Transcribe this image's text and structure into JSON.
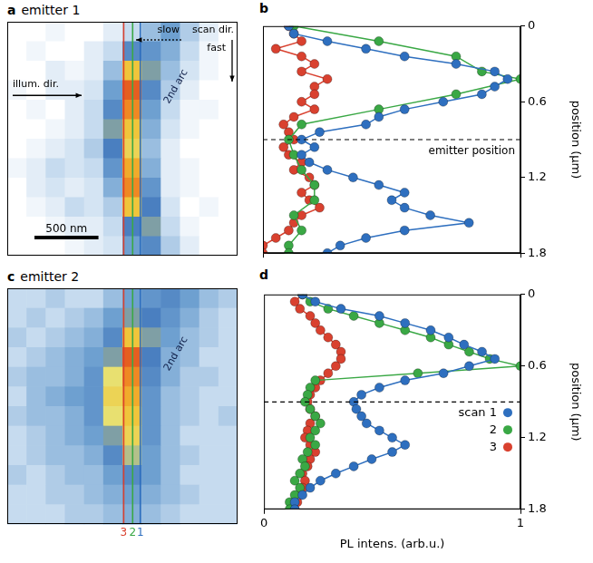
{
  "chart_data": [
    {
      "type": "heatmap",
      "panel": "a",
      "title": "emitter 1",
      "xlim": [
        0,
        1.8
      ],
      "ylim": [
        0,
        1.8
      ],
      "tick_labels": false,
      "zlim": [
        0,
        1
      ],
      "cells": [
        [
          0,
          0,
          0.05,
          0,
          0,
          0.1,
          0.2,
          0.3,
          0.4,
          0.25,
          0.1,
          0
        ],
        [
          0,
          0.05,
          0,
          0,
          0.1,
          0.2,
          0.5,
          0.45,
          0.35,
          0.2,
          0.05,
          0
        ],
        [
          0,
          0,
          0.1,
          0.05,
          0.1,
          0.3,
          0.8,
          0.6,
          0.3,
          0.15,
          0.05,
          0
        ],
        [
          0.05,
          0,
          0.1,
          0.1,
          0.15,
          0.4,
          0.95,
          0.5,
          0.25,
          0.1,
          0,
          0
        ],
        [
          0,
          0.05,
          0,
          0.1,
          0.2,
          0.5,
          0.9,
          0.4,
          0.2,
          0.05,
          0.05,
          0
        ],
        [
          0,
          0,
          0.05,
          0.1,
          0.2,
          0.6,
          0.8,
          0.35,
          0.15,
          0.05,
          0,
          0
        ],
        [
          0,
          0.05,
          0.1,
          0.15,
          0.25,
          0.55,
          0.75,
          0.3,
          0.1,
          0,
          0,
          0
        ],
        [
          0.05,
          0.1,
          0.2,
          0.15,
          0.2,
          0.45,
          0.85,
          0.35,
          0.1,
          0.05,
          0,
          0
        ],
        [
          0,
          0.1,
          0.15,
          0.1,
          0.15,
          0.35,
          0.9,
          0.45,
          0.1,
          0.05,
          0,
          0
        ],
        [
          0,
          0.05,
          0.1,
          0.2,
          0.15,
          0.25,
          0.8,
          0.55,
          0.15,
          0,
          0.05,
          0
        ],
        [
          0,
          0,
          0.05,
          0.1,
          0.1,
          0.2,
          0.55,
          0.6,
          0.2,
          0.05,
          0,
          0
        ],
        [
          0,
          0,
          0,
          0.05,
          0.1,
          0.15,
          0.4,
          0.5,
          0.25,
          0.1,
          0,
          0
        ]
      ],
      "scan_lines": [
        {
          "x": 1.04,
          "color": "#2e6fbf"
        },
        {
          "x": 0.98,
          "color": "#3aa845"
        },
        {
          "x": 0.91,
          "color": "#d9412f"
        }
      ],
      "illumination_label": "illum. dir.",
      "scan_label": "scan dir.",
      "slow_label": "slow",
      "fast_label": "fast",
      "arc_label": "2nd arc",
      "scale_bar": {
        "label": "500 nm",
        "length": 0.5
      }
    },
    {
      "type": "line",
      "panel": "b",
      "marker": "circle",
      "grid": false,
      "tick_labels": "y",
      "xlim": [
        0,
        1
      ],
      "xticks": [
        0,
        1
      ],
      "ylim": [
        0,
        1.8
      ],
      "yticks": [
        0,
        0.6,
        1.2,
        1.8
      ],
      "y_label": "position (µm)",
      "emitter_position": 0.9,
      "emitter_label": "emitter position",
      "series": [
        {
          "color": "#2e6fbf",
          "x": [
            0.1,
            0.12,
            0.25,
            0.4,
            0.55,
            0.75,
            0.9,
            0.95,
            0.9,
            0.85,
            0.7,
            0.55,
            0.45,
            0.4,
            0.22,
            0.15,
            0.2,
            0.15,
            0.18,
            0.25,
            0.35,
            0.45,
            0.55,
            0.5,
            0.55,
            0.65,
            0.8,
            0.55,
            0.4,
            0.3,
            0.25
          ],
          "y": [
            0,
            0.06,
            0.12,
            0.18,
            0.24,
            0.3,
            0.36,
            0.42,
            0.48,
            0.54,
            0.6,
            0.66,
            0.72,
            0.78,
            0.84,
            0.9,
            0.96,
            1.02,
            1.08,
            1.14,
            1.2,
            1.26,
            1.32,
            1.38,
            1.44,
            1.5,
            1.56,
            1.62,
            1.68,
            1.74,
            1.8
          ]
        },
        {
          "color": "#3aa845",
          "x": [
            0.12,
            0.45,
            0.75,
            0.85,
            1.0,
            0.75,
            0.45,
            0.15,
            0.1,
            0.12,
            0.15,
            0.2,
            0.2,
            0.12,
            0.15,
            0.1,
            0.1
          ],
          "y": [
            0,
            0.12,
            0.24,
            0.36,
            0.42,
            0.54,
            0.66,
            0.78,
            0.9,
            1.02,
            1.14,
            1.26,
            1.38,
            1.5,
            1.62,
            1.74,
            1.8
          ]
        },
        {
          "color": "#d9412f",
          "x": [
            0.1,
            0.12,
            0.15,
            0.05,
            0.15,
            0.2,
            0.15,
            0.25,
            0.2,
            0.2,
            0.15,
            0.2,
            0.12,
            0.08,
            0.1,
            0.12,
            0.08,
            0.1,
            0.15,
            0.12,
            0.18,
            0.2,
            0.15,
            0.18,
            0.22,
            0.15,
            0.12,
            0.1,
            0.05,
            0.0,
            0.0
          ],
          "y": [
            0,
            0.06,
            0.12,
            0.18,
            0.24,
            0.3,
            0.36,
            0.42,
            0.48,
            0.54,
            0.6,
            0.66,
            0.72,
            0.78,
            0.84,
            0.9,
            0.96,
            1.02,
            1.08,
            1.14,
            1.2,
            1.26,
            1.32,
            1.38,
            1.44,
            1.5,
            1.56,
            1.62,
            1.68,
            1.74,
            1.8
          ]
        }
      ]
    },
    {
      "type": "heatmap",
      "panel": "c",
      "title": "emitter 2",
      "xlim": [
        0,
        1.8
      ],
      "ylim": [
        0,
        1.8
      ],
      "tick_labels": false,
      "zlim": [
        0,
        1
      ],
      "cells": [
        [
          0.2,
          0.2,
          0.25,
          0.2,
          0.2,
          0.3,
          0.4,
          0.45,
          0.5,
          0.4,
          0.3,
          0.25
        ],
        [
          0.2,
          0.25,
          0.2,
          0.25,
          0.3,
          0.4,
          0.6,
          0.55,
          0.45,
          0.35,
          0.25,
          0.2
        ],
        [
          0.25,
          0.2,
          0.25,
          0.3,
          0.35,
          0.5,
          0.8,
          0.6,
          0.4,
          0.3,
          0.25,
          0.2
        ],
        [
          0.2,
          0.25,
          0.3,
          0.35,
          0.4,
          0.6,
          0.95,
          0.55,
          0.35,
          0.3,
          0.2,
          0.2
        ],
        [
          0.25,
          0.3,
          0.3,
          0.35,
          0.45,
          0.7,
          0.9,
          0.5,
          0.35,
          0.25,
          0.25,
          0.2
        ],
        [
          0.2,
          0.3,
          0.35,
          0.4,
          0.45,
          0.75,
          0.85,
          0.45,
          0.3,
          0.25,
          0.2,
          0.2
        ],
        [
          0.25,
          0.3,
          0.3,
          0.35,
          0.45,
          0.7,
          0.8,
          0.45,
          0.3,
          0.25,
          0.2,
          0.25
        ],
        [
          0.2,
          0.25,
          0.3,
          0.35,
          0.4,
          0.6,
          0.75,
          0.45,
          0.3,
          0.2,
          0.2,
          0.2
        ],
        [
          0.2,
          0.25,
          0.3,
          0.3,
          0.35,
          0.5,
          0.65,
          0.4,
          0.3,
          0.25,
          0.2,
          0.2
        ],
        [
          0.25,
          0.2,
          0.25,
          0.3,
          0.3,
          0.4,
          0.5,
          0.4,
          0.3,
          0.2,
          0.2,
          0.2
        ],
        [
          0.2,
          0.2,
          0.25,
          0.25,
          0.3,
          0.35,
          0.4,
          0.35,
          0.3,
          0.25,
          0.2,
          0.2
        ],
        [
          0.2,
          0.2,
          0.2,
          0.25,
          0.25,
          0.3,
          0.35,
          0.3,
          0.25,
          0.2,
          0.2,
          0.2
        ]
      ],
      "scan_lines": [
        {
          "label": "1",
          "x": 1.04,
          "color": "#2e6fbf"
        },
        {
          "label": "2",
          "x": 0.98,
          "color": "#3aa845"
        },
        {
          "label": "3",
          "x": 0.91,
          "color": "#d9412f"
        }
      ],
      "arc_label": "2nd arc"
    },
    {
      "type": "line",
      "panel": "d",
      "marker": "circle",
      "grid": false,
      "legend": "right",
      "xlim": [
        0,
        1
      ],
      "xticks": [
        0,
        1
      ],
      "ylim": [
        0,
        1.8
      ],
      "yticks": [
        0,
        0.6,
        1.2,
        1.8
      ],
      "x_label": "PL intens. (arb.u.)",
      "y_label": "position (µm)",
      "emitter_position": 0.9,
      "series": [
        {
          "name": "scan 1",
          "color": "#2e6fbf",
          "x": [
            0.15,
            0.2,
            0.3,
            0.45,
            0.55,
            0.65,
            0.72,
            0.78,
            0.85,
            0.9,
            0.8,
            0.7,
            0.55,
            0.45,
            0.38,
            0.35,
            0.36,
            0.38,
            0.4,
            0.45,
            0.5,
            0.55,
            0.5,
            0.42,
            0.35,
            0.28,
            0.22,
            0.18,
            0.15,
            0.12,
            0.12
          ],
          "y": [
            0,
            0.06,
            0.12,
            0.18,
            0.24,
            0.3,
            0.36,
            0.42,
            0.48,
            0.54,
            0.6,
            0.66,
            0.72,
            0.78,
            0.84,
            0.9,
            0.96,
            1.02,
            1.08,
            1.14,
            1.2,
            1.26,
            1.32,
            1.38,
            1.44,
            1.5,
            1.56,
            1.62,
            1.68,
            1.74,
            1.8
          ]
        },
        {
          "name": "2",
          "color": "#3aa845",
          "x": [
            0.15,
            0.18,
            0.25,
            0.35,
            0.45,
            0.55,
            0.65,
            0.72,
            0.8,
            0.88,
            1.0,
            0.6,
            0.2,
            0.18,
            0.17,
            0.16,
            0.18,
            0.2,
            0.22,
            0.2,
            0.18,
            0.2,
            0.17,
            0.15,
            0.16,
            0.14,
            0.12,
            0.14,
            0.12,
            0.1,
            0.1
          ],
          "y": [
            0,
            0.06,
            0.12,
            0.18,
            0.24,
            0.3,
            0.36,
            0.42,
            0.48,
            0.54,
            0.6,
            0.66,
            0.72,
            0.78,
            0.84,
            0.9,
            0.96,
            1.02,
            1.08,
            1.14,
            1.2,
            1.26,
            1.32,
            1.38,
            1.44,
            1.5,
            1.56,
            1.62,
            1.68,
            1.74,
            1.8
          ]
        },
        {
          "name": "3",
          "color": "#d9412f",
          "x": [
            0.15,
            0.12,
            0.14,
            0.18,
            0.2,
            0.22,
            0.25,
            0.28,
            0.3,
            0.3,
            0.28,
            0.25,
            0.22,
            0.2,
            0.18,
            0.17,
            0.18,
            0.2,
            0.18,
            0.17,
            0.16,
            0.18,
            0.2,
            0.18,
            0.17,
            0.15,
            0.16,
            0.15,
            0.14,
            0.13,
            0.12
          ],
          "y": [
            0,
            0.06,
            0.12,
            0.18,
            0.24,
            0.3,
            0.36,
            0.42,
            0.48,
            0.54,
            0.6,
            0.66,
            0.72,
            0.78,
            0.84,
            0.9,
            0.96,
            1.02,
            1.08,
            1.14,
            1.2,
            1.26,
            1.32,
            1.38,
            1.44,
            1.5,
            1.56,
            1.62,
            1.68,
            1.74,
            1.8
          ]
        }
      ]
    }
  ]
}
